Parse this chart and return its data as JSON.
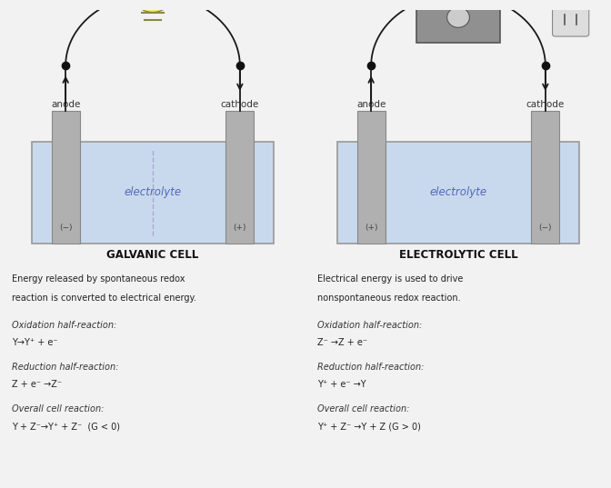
{
  "bg_color": "#f2f2f2",
  "fig_width": 6.72,
  "fig_height": 5.37,
  "galvanic": {
    "title": "GALVANIC CELL",
    "description1": "Energy released by spontaneous redox",
    "description2": "reaction is converted to electrical energy.",
    "ox_label": "Oxidation half-reaction:",
    "ox_eq": "Y→Y⁺ + e⁻",
    "red_label": "Reduction half-reaction:",
    "red_eq": "Z + e⁻ →Z⁻",
    "ov_label": "Overall cell reaction:",
    "ov_eq": "Y + Z⁻→Y⁺ + Z⁻  (G < 0)",
    "anode_sign": "(−)",
    "cathode_sign": "(+)",
    "electrolyte": "electrolyte",
    "has_salt_bridge": true
  },
  "electrolytic": {
    "title": "ELECTROLYTIC CELL",
    "description1": "Electrical energy is used to drive",
    "description2": "nonspontaneous redox reaction.",
    "ox_label": "Oxidation half-reaction:",
    "ox_eq": "Z⁻ →Z + e⁻",
    "red_label": "Reduction half-reaction:",
    "red_eq": "Y⁺ + e⁻ →Y",
    "ov_label": "Overall cell reaction:",
    "ov_eq": "Y⁺ + Z⁻ →Y + Z (G > 0)",
    "anode_sign": "(+)",
    "cathode_sign": "(−)",
    "electrolyte": "electrolyte",
    "has_salt_bridge": false
  },
  "tank_color": "#c9d9ed",
  "tank_edge": "#999999",
  "electrode_color": "#b0b0b0",
  "electrode_edge": "#888888",
  "wire_color": "#1a1a1a",
  "dot_color": "#111111",
  "sign_color": "#444444",
  "elec_text_color": "#5566bb",
  "label_color": "#333333",
  "title_color": "#111111",
  "text_color": "#222222",
  "italic_color": "#333333"
}
